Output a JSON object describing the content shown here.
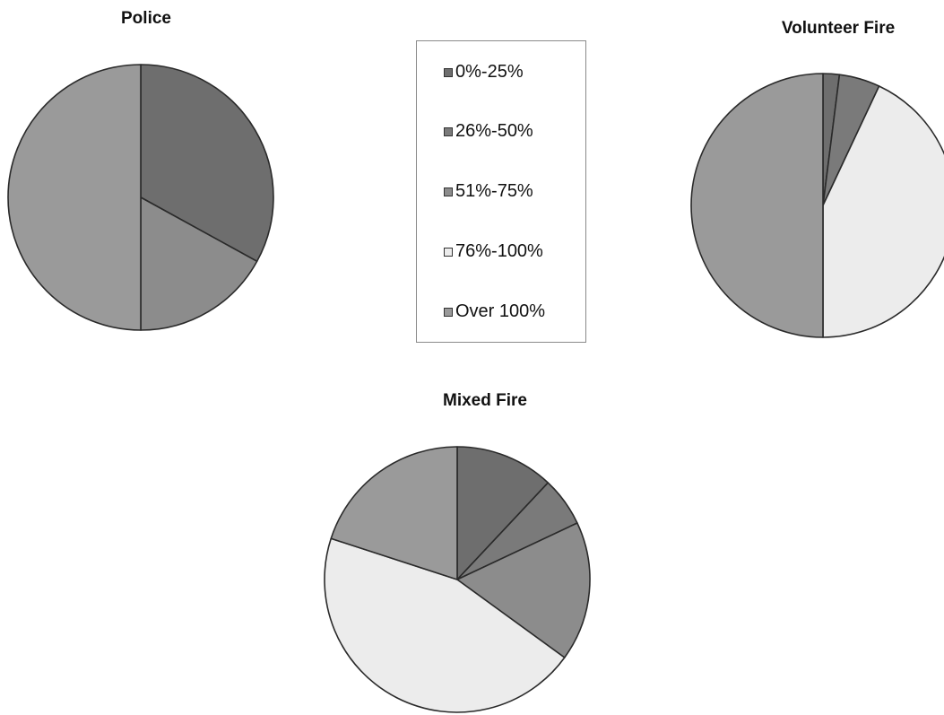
{
  "legend": {
    "items": [
      {
        "label": "0%-25%",
        "color": "#6e6e6e"
      },
      {
        "label": "26%-50%",
        "color": "#7a7a7a"
      },
      {
        "label": "51%-75%",
        "color": "#8c8c8c"
      },
      {
        "label": "76%-100%",
        "color": "#ececec"
      },
      {
        "label": "Over 100%",
        "color": "#9a9a9a"
      }
    ]
  },
  "chart_data": [
    {
      "type": "pie",
      "title": "Police",
      "categories": [
        "0%-25%",
        "26%-50%",
        "51%-75%",
        "76%-100%",
        "Over 100%"
      ],
      "values": [
        33,
        0,
        17,
        0,
        50
      ]
    },
    {
      "type": "pie",
      "title": "Volunteer Fire",
      "categories": [
        "0%-25%",
        "26%-50%",
        "51%-75%",
        "76%-100%",
        "Over 100%"
      ],
      "values": [
        2,
        5,
        0,
        43,
        50
      ]
    },
    {
      "type": "pie",
      "title": "Mixed Fire",
      "categories": [
        "0%-25%",
        "26%-50%",
        "51%-75%",
        "76%-100%",
        "Over 100%"
      ],
      "values": [
        12,
        6,
        17,
        45,
        20
      ]
    }
  ]
}
